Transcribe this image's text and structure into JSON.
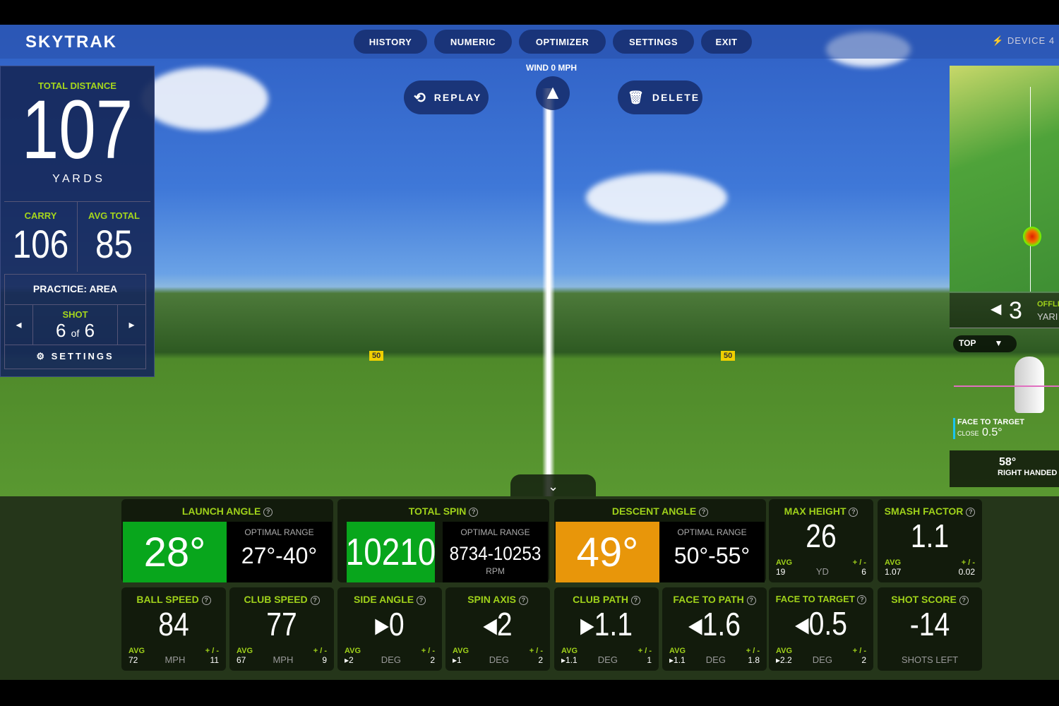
{
  "app": {
    "logo": "SKYTRAK"
  },
  "nav": [
    {
      "label": "HISTORY"
    },
    {
      "label": "NUMERIC"
    },
    {
      "label": "OPTIMIZER"
    },
    {
      "label": "SETTINGS"
    },
    {
      "label": "EXIT"
    }
  ],
  "device": "DEVICE 4",
  "wind": "WIND 0 MPH",
  "replay": "REPLAY",
  "delete": "DELETE",
  "left": {
    "total_label": "TOTAL DISTANCE",
    "total": "107",
    "unit": "Y A R D S",
    "carry_label": "CARRY",
    "carry": "106",
    "avg_label": "AVG TOTAL",
    "avg": "85",
    "practice": "PRACTICE: AREA",
    "shot_label": "SHOT",
    "shot": "6",
    "of": "of",
    "shots": "6",
    "settings": "SETTINGS"
  },
  "markers": [
    "50",
    "50"
  ],
  "right": {
    "offline_label": "OFFLI",
    "offline_unit": "YARI",
    "offline": "3",
    "view": "TOP",
    "ftt_label": "FACE TO TARGET",
    "ftt_dir": "CLOSE",
    "ftt": "0.5°",
    "loft": "58°",
    "hand": "RIGHT HANDED"
  },
  "colors": {
    "good": "#08a61c",
    "warn": "#e8960a",
    "label": "#9fd11a"
  },
  "opt_cards": [
    {
      "title": "LAUNCH ANGLE",
      "value": "28°",
      "opt_label": "OPTIMAL RANGE",
      "opt": "27°-40°",
      "unit": "",
      "status": "good"
    },
    {
      "title": "TOTAL SPIN",
      "value": "10210",
      "opt_label": "OPTIMAL RANGE",
      "opt": "8734-10253",
      "unit": "RPM",
      "status": "good"
    },
    {
      "title": "DESCENT ANGLE",
      "value": "49°",
      "opt_label": "OPTIMAL RANGE",
      "opt": "50°-55°",
      "unit": "",
      "status": "warn"
    }
  ],
  "stat_cards": [
    {
      "title": "MAX HEIGHT",
      "value": "26",
      "avg": "19",
      "unit": "YD",
      "pm": "6"
    },
    {
      "title": "SMASH FACTOR",
      "value": "1.1",
      "avg": "1.07",
      "unit": "",
      "pm": "0.02"
    },
    {
      "title": "BALL SPEED",
      "value": "84",
      "avg": "72",
      "unit": "MPH",
      "pm": "11"
    },
    {
      "title": "CLUB SPEED",
      "value": "77",
      "avg": "67",
      "unit": "MPH",
      "pm": "9"
    },
    {
      "title": "SIDE ANGLE",
      "value": "▸0",
      "avg": "▸2",
      "unit": "DEG",
      "pm": "2"
    },
    {
      "title": "SPIN AXIS",
      "value": "◂2",
      "avg": "▸1",
      "unit": "DEG",
      "pm": "2"
    },
    {
      "title": "CLUB PATH",
      "value": "▸1.1",
      "avg": "▸1.1",
      "unit": "DEG",
      "pm": "1"
    },
    {
      "title": "FACE TO PATH",
      "value": "◂1.6",
      "avg": "▸1.1",
      "unit": "DEG",
      "pm": "1.8"
    },
    {
      "title": "FACE TO TARGET",
      "value": "◂0.5",
      "avg": "▸2.2",
      "unit": "DEG",
      "pm": "2"
    },
    {
      "title": "SHOT SCORE",
      "value": "-14",
      "avg": "",
      "unit": "SHOTS LEFT",
      "pm": ""
    }
  ],
  "labels": {
    "avg": "AVG",
    "pm": "+ / -",
    "q": "?"
  }
}
